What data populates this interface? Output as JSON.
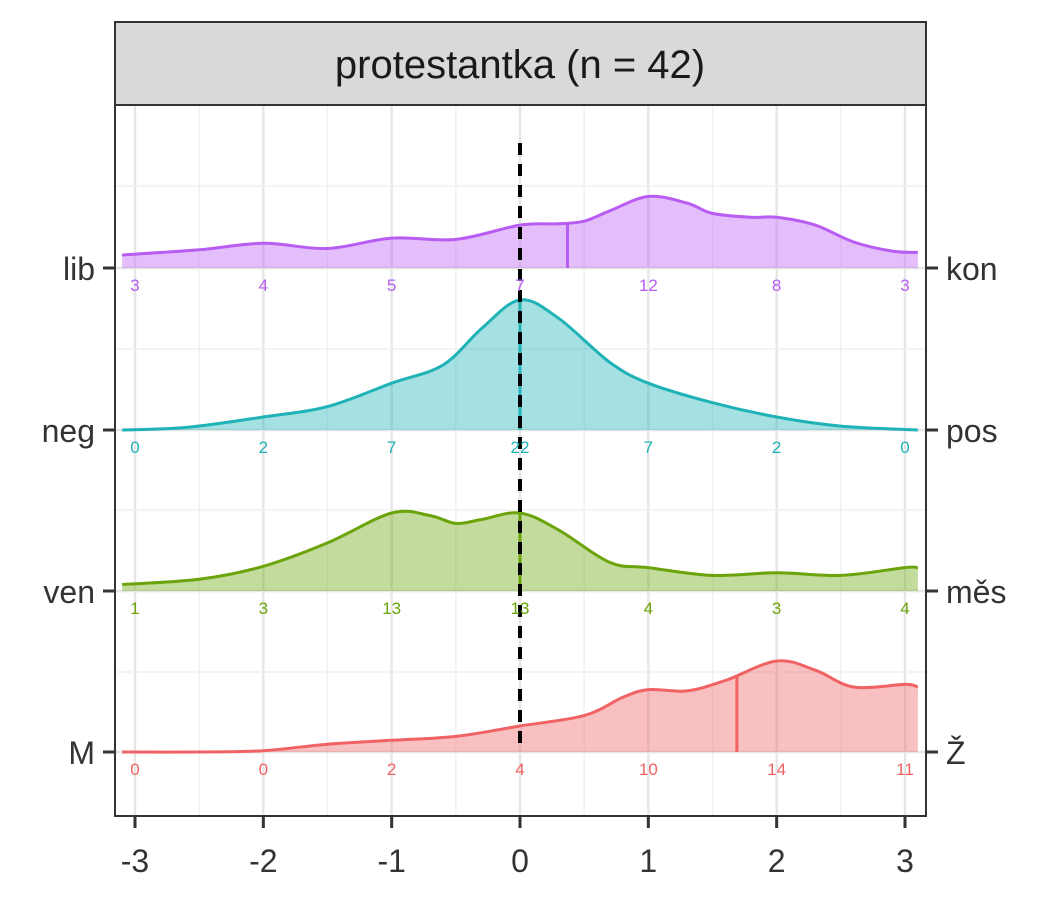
{
  "chart_data": {
    "type": "ridgeline-density",
    "panel_title": "protestantka (n = 42)",
    "x": {
      "range": [
        -3.1,
        3.1
      ],
      "ticks": [
        -3,
        -2,
        -1,
        0,
        1,
        2,
        3
      ],
      "tick_labels": [
        "-3",
        "-2",
        "-1",
        "0",
        "1",
        "2",
        "3"
      ]
    },
    "reference_line_x": 0,
    "grid": true,
    "rows": [
      {
        "left_label": "lib",
        "right_label": "kon",
        "color": "#B85CF2",
        "median": 0.37,
        "counts": [
          3,
          4,
          5,
          7,
          12,
          8,
          3
        ],
        "density": [
          [
            -3.1,
            0.1
          ],
          [
            -2.5,
            0.14
          ],
          [
            -2,
            0.19
          ],
          [
            -1.5,
            0.15
          ],
          [
            -1,
            0.23
          ],
          [
            -0.5,
            0.22
          ],
          [
            0,
            0.33
          ],
          [
            0.3,
            0.34
          ],
          [
            0.5,
            0.36
          ],
          [
            0.7,
            0.44
          ],
          [
            1,
            0.55
          ],
          [
            1.3,
            0.5
          ],
          [
            1.5,
            0.42
          ],
          [
            1.8,
            0.39
          ],
          [
            2,
            0.39
          ],
          [
            2.3,
            0.33
          ],
          [
            2.6,
            0.2
          ],
          [
            2.9,
            0.13
          ],
          [
            3.1,
            0.12
          ]
        ]
      },
      {
        "left_label": "neg",
        "right_label": "pos",
        "color": "#1FB2B7",
        "median": 0,
        "counts": [
          0,
          2,
          7,
          22,
          7,
          2,
          0
        ],
        "density": [
          [
            -3.1,
            0.0
          ],
          [
            -2.6,
            0.02
          ],
          [
            -2,
            0.1
          ],
          [
            -1.5,
            0.18
          ],
          [
            -1,
            0.36
          ],
          [
            -0.6,
            0.5
          ],
          [
            -0.3,
            0.78
          ],
          [
            0,
            1.0
          ],
          [
            0.3,
            0.86
          ],
          [
            0.7,
            0.52
          ],
          [
            1,
            0.36
          ],
          [
            1.5,
            0.21
          ],
          [
            2,
            0.1
          ],
          [
            2.5,
            0.03
          ],
          [
            3.1,
            0.0
          ]
        ]
      },
      {
        "left_label": "ven",
        "right_label": "měs",
        "color": "#6AA40A",
        "median": 0,
        "counts": [
          1,
          3,
          13,
          13,
          4,
          3,
          4
        ],
        "density": [
          [
            -3.1,
            0.05
          ],
          [
            -2.5,
            0.09
          ],
          [
            -2,
            0.19
          ],
          [
            -1.5,
            0.37
          ],
          [
            -1,
            0.6
          ],
          [
            -0.7,
            0.58
          ],
          [
            -0.5,
            0.52
          ],
          [
            -0.3,
            0.55
          ],
          [
            0,
            0.6
          ],
          [
            0.3,
            0.47
          ],
          [
            0.7,
            0.22
          ],
          [
            1,
            0.18
          ],
          [
            1.5,
            0.12
          ],
          [
            2,
            0.14
          ],
          [
            2.5,
            0.12
          ],
          [
            3,
            0.18
          ],
          [
            3.1,
            0.18
          ]
        ]
      },
      {
        "left_label": "M",
        "right_label": "Ž",
        "color": "#F06263",
        "median": 1.69,
        "counts": [
          0,
          0,
          2,
          4,
          10,
          14,
          11
        ],
        "density": [
          [
            -3.1,
            0.0
          ],
          [
            -2.5,
            0.0
          ],
          [
            -2,
            0.01
          ],
          [
            -1.5,
            0.06
          ],
          [
            -1,
            0.09
          ],
          [
            -0.5,
            0.12
          ],
          [
            0,
            0.2
          ],
          [
            0.5,
            0.28
          ],
          [
            0.8,
            0.42
          ],
          [
            1,
            0.48
          ],
          [
            1.3,
            0.47
          ],
          [
            1.6,
            0.55
          ],
          [
            2,
            0.7
          ],
          [
            2.3,
            0.63
          ],
          [
            2.6,
            0.5
          ],
          [
            3,
            0.52
          ],
          [
            3.1,
            0.5
          ]
        ]
      }
    ]
  }
}
